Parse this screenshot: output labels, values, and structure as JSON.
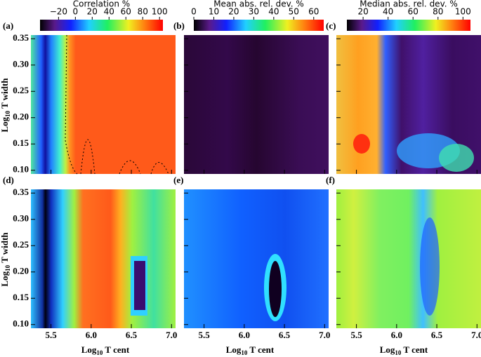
{
  "chart_data": {
    "type": "heatmap",
    "panels": [
      "(a)",
      "(b)",
      "(c)",
      "(d)",
      "(e)",
      "(f)"
    ],
    "xlabel": {
      "base": "Log",
      "sub": "10",
      "rest": " T cent"
    },
    "ylabel": {
      "base": "Log",
      "sub": "10",
      "rest": " T width"
    },
    "xlim": [
      5.25,
      7.05
    ],
    "xticks": [
      5.5,
      {
        "value": 6,
        "label": "6.0"
      },
      6.5,
      {
        "value": 7,
        "label": "7.0"
      }
    ],
    "ylim": [
      0.093,
      0.357
    ],
    "yticks": [
      {
        "value": 0.1,
        "label": "0.10"
      },
      0.15,
      {
        "value": 0.2,
        "label": "0.20"
      },
      0.25,
      {
        "value": 0.3,
        "label": "0.30"
      },
      0.35
    ],
    "colorbars": [
      {
        "title": "Correlation %",
        "lim": [
          -42,
          104
        ],
        "ticks": [
          {
            "value": -20,
            "label": "−20"
          },
          0,
          20,
          40,
          60,
          80,
          100
        ]
      },
      {
        "title": "Mean abs. rel. dev. %",
        "lim": [
          0,
          65
        ],
        "ticks": [
          0,
          10,
          20,
          30,
          40,
          50,
          60
        ]
      },
      {
        "title": "Median abs. rel. dev. %",
        "lim": [
          7,
          106
        ],
        "ticks": [
          20,
          40,
          60,
          80,
          100
        ]
      }
    ]
  }
}
